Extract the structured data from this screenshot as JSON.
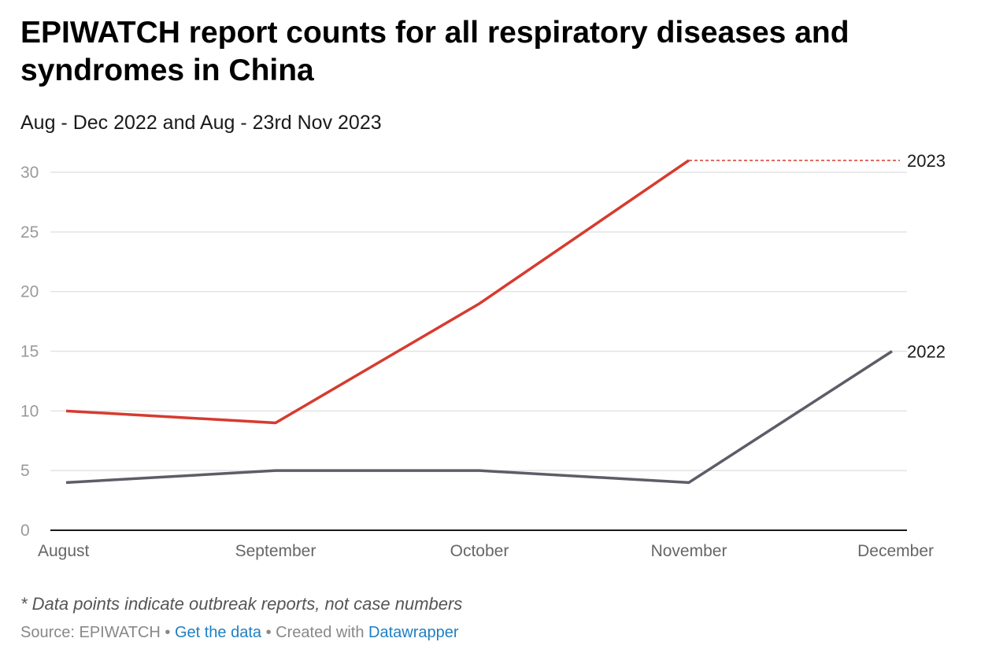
{
  "title": "EPIWATCH report counts for all respiratory diseases and syndromes in China",
  "subtitle": "Aug - Dec 2022 and Aug - 23rd Nov 2023",
  "note": "* Data points indicate outbreak reports, not case numbers",
  "footer": {
    "source_label": "Source: EPIWATCH",
    "separator": "•",
    "get_data_link": "Get the data",
    "created_with": "Created with",
    "datawrapper_link": "Datawrapper"
  },
  "colors": {
    "series_2023": "#d63b2f",
    "series_2022": "#5e5d67",
    "grid": "#e3e3e3",
    "axis": "#1a1a1a",
    "link": "#1f7fc4"
  },
  "chart_data": {
    "type": "line",
    "categories": [
      "August",
      "September",
      "October",
      "November",
      "December"
    ],
    "ylim": [
      0,
      30
    ],
    "yticks": [
      0,
      5,
      10,
      15,
      20,
      25,
      30
    ],
    "grid": true,
    "series": [
      {
        "name": "2023",
        "values": [
          10,
          9,
          19,
          31,
          null
        ],
        "color": "#d63b2f",
        "extension": "dashed to December"
      },
      {
        "name": "2022",
        "values": [
          4,
          5,
          5,
          4,
          15
        ],
        "color": "#5e5d67"
      }
    ]
  }
}
